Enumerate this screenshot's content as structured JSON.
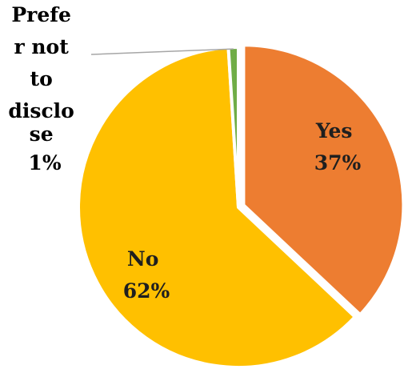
{
  "chart_data": {
    "type": "pie",
    "title": "",
    "slices": [
      {
        "label": "Yes",
        "value": 37,
        "percent_label": "37%",
        "color": "#ED7D31",
        "label_color": "#1f1f1f"
      },
      {
        "label": "No",
        "value": 62,
        "percent_label": "62%",
        "color": "#FFC000",
        "label_color": "#1f1f1f"
      },
      {
        "label": "Prefer not to disclose",
        "value": 1,
        "percent_label": "1%",
        "color": "#70AD47",
        "label_color": "#000000"
      }
    ],
    "outside_label_lines": [
      "Prefe",
      "r not",
      "to",
      "disclo",
      "se",
      "1%"
    ],
    "leader_line_color": "#A6A6A6"
  }
}
